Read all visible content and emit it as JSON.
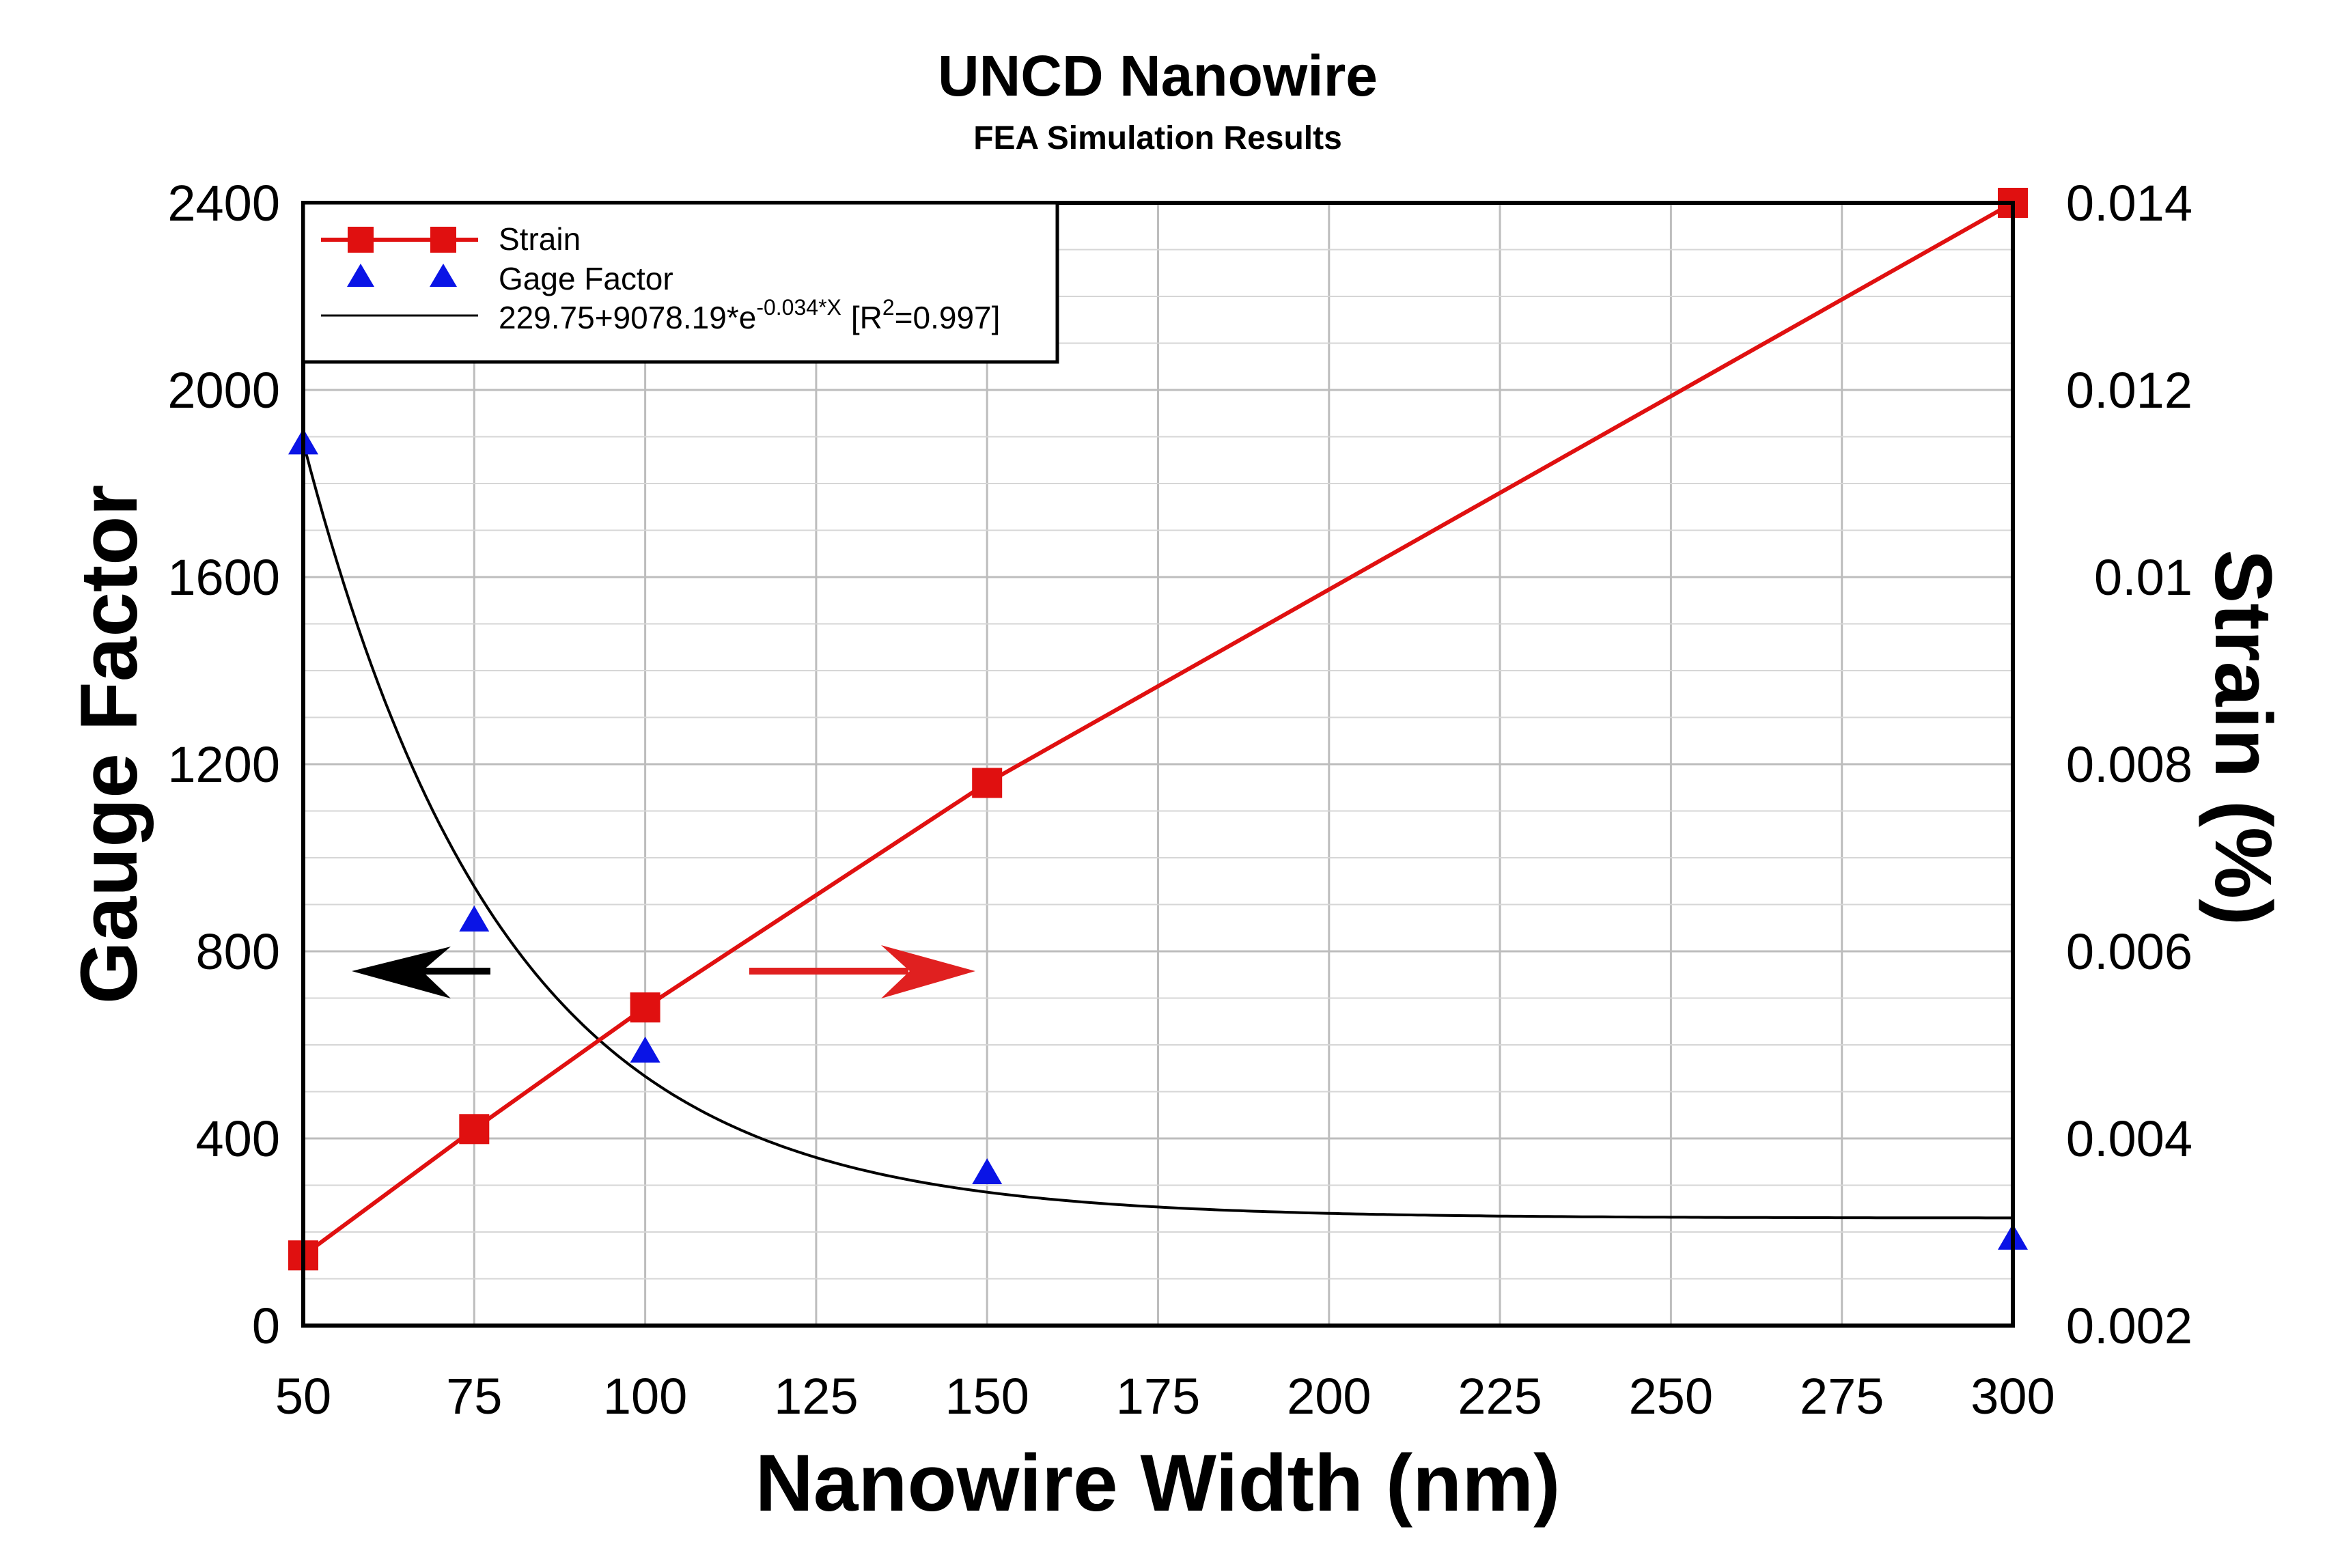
{
  "chart_data": {
    "type": "line",
    "title": "UNCD Nanowire",
    "subtitle": "FEA Simulation Results",
    "xlabel": "Nanowire Width (nm)",
    "ylabel_left": "Gauge Factor",
    "ylabel_right": "Strain (%)",
    "xlim": [
      50,
      300
    ],
    "ylim_left": [
      0,
      2400
    ],
    "ylim_right": [
      0.002,
      0.014
    ],
    "x_ticks": [
      50,
      75,
      100,
      125,
      150,
      175,
      200,
      225,
      250,
      275,
      300
    ],
    "y_left_ticks": [
      0,
      400,
      800,
      1200,
      1600,
      2000,
      2400
    ],
    "y_right_ticks": [
      "0.002",
      "0.004",
      "0.006",
      "0.008",
      "0.01",
      "0.012",
      "0.014"
    ],
    "grid": true,
    "legend_position": "top-left",
    "series": [
      {
        "name": "Strain",
        "axis": "right",
        "marker": "square",
        "color": "#e01010",
        "x": [
          50,
          75,
          100,
          150,
          300
        ],
        "y": [
          0.00275,
          0.0041,
          0.0054,
          0.0078,
          0.014
        ]
      },
      {
        "name": "Gage Factor",
        "axis": "left",
        "marker": "triangle",
        "color": "#0a14e6",
        "x": [
          50,
          75,
          100,
          150,
          300
        ],
        "y": [
          1890,
          870,
          590,
          330,
          190
        ]
      },
      {
        "name": "229.75+9078.19*e^-0.034*X [R^2=0.997]",
        "axis": "left",
        "marker": "none",
        "color": "#000000",
        "fit": {
          "a": 229.75,
          "b": 9078.19,
          "k": -0.034
        }
      }
    ],
    "legend": {
      "strain": "Strain",
      "gage": "Gage Factor",
      "fit_prefix": "229.75+9078.19*e",
      "fit_exponent": "-0.034*X",
      "fit_bracket_open": "[R",
      "fit_r_sup": "2",
      "fit_r_value": "=0.997]"
    },
    "annotations": [
      {
        "type": "arrow",
        "direction": "left",
        "color": "#000000",
        "meaning": "left axis"
      },
      {
        "type": "arrow",
        "direction": "right",
        "color": "#e02020",
        "meaning": "right axis"
      }
    ]
  }
}
